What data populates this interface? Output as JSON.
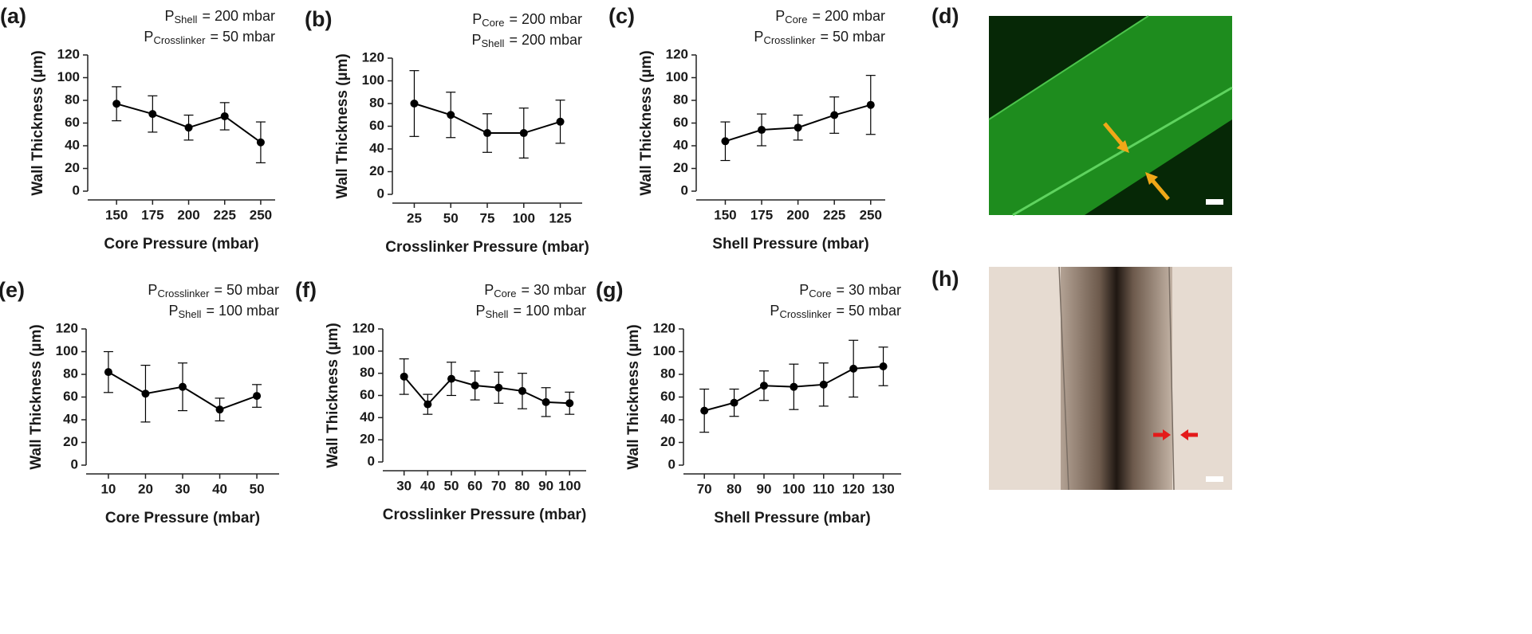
{
  "chart_data": [
    {
      "type": "line",
      "label": "(a)",
      "annotations": [
        {
          "base": "P",
          "sub": "Shell",
          "text": "= 200 mbar"
        },
        {
          "base": "P",
          "sub": "Crosslinker",
          "text": "= 50 mbar"
        }
      ],
      "xlabel": "Core Pressure (mbar)",
      "ylabel": "Wall Thickness (µm)",
      "color": "#000000",
      "x": [
        150,
        175,
        200,
        225,
        250
      ],
      "values": [
        77,
        68,
        56,
        66,
        43
      ],
      "errors": [
        15,
        16,
        11,
        12,
        18
      ],
      "xlim": [
        130,
        260
      ],
      "xticks": [
        150,
        175,
        200,
        225,
        250
      ],
      "ylim": [
        0,
        120
      ],
      "yticks": [
        0,
        20,
        40,
        60,
        80,
        100,
        120
      ]
    },
    {
      "type": "line",
      "label": "(b)",
      "annotations": [
        {
          "base": "P",
          "sub": "Core",
          "text": "= 200 mbar"
        },
        {
          "base": "P",
          "sub": "Shell",
          "text": "= 200 mbar"
        }
      ],
      "xlabel": "Crosslinker Pressure (mbar)",
      "ylabel": "Wall Thickness (µm)",
      "color": "#000000",
      "x": [
        25,
        50,
        75,
        100,
        125
      ],
      "values": [
        80,
        70,
        54,
        54,
        64
      ],
      "errors": [
        29,
        20,
        17,
        22,
        19
      ],
      "xlim": [
        10,
        140
      ],
      "xticks": [
        25,
        50,
        75,
        100,
        125
      ],
      "ylim": [
        0,
        120
      ],
      "yticks": [
        0,
        20,
        40,
        60,
        80,
        100,
        120
      ]
    },
    {
      "type": "line",
      "label": "(c)",
      "annotations": [
        {
          "base": "P",
          "sub": "Core",
          "text": "= 200 mbar"
        },
        {
          "base": "P",
          "sub": "Crosslinker",
          "text": "= 50 mbar"
        }
      ],
      "xlabel": "Shell Pressure (mbar)",
      "ylabel": "Wall Thickness (µm)",
      "color": "#000000",
      "x": [
        150,
        175,
        200,
        225,
        250
      ],
      "values": [
        44,
        54,
        56,
        67,
        76
      ],
      "errors": [
        17,
        14,
        11,
        16,
        26
      ],
      "xlim": [
        130,
        260
      ],
      "xticks": [
        150,
        175,
        200,
        225,
        250
      ],
      "ylim": [
        0,
        120
      ],
      "yticks": [
        0,
        20,
        40,
        60,
        80,
        100,
        120
      ]
    },
    {
      "type": "line",
      "label": "(e)",
      "annotations": [
        {
          "base": "P",
          "sub": "Crosslinker",
          "text": "= 50 mbar"
        },
        {
          "base": "P",
          "sub": "Shell",
          "text": "= 100 mbar"
        }
      ],
      "xlabel": "Core Pressure (mbar)",
      "ylabel": "Wall Thickness (µm)",
      "color": "#000000",
      "x": [
        10,
        20,
        30,
        40,
        50
      ],
      "values": [
        82,
        63,
        69,
        49,
        61
      ],
      "errors": [
        18,
        25,
        21,
        10,
        10
      ],
      "xlim": [
        4,
        56
      ],
      "xticks": [
        10,
        20,
        30,
        40,
        50
      ],
      "ylim": [
        0,
        120
      ],
      "yticks": [
        0,
        20,
        40,
        60,
        80,
        100,
        120
      ]
    },
    {
      "type": "line",
      "label": "(f)",
      "annotations": [
        {
          "base": "P",
          "sub": "Core",
          "text": "= 30 mbar"
        },
        {
          "base": "P",
          "sub": "Shell",
          "text": "= 100 mbar"
        }
      ],
      "xlabel": "Crosslinker Pressure (mbar)",
      "ylabel": "Wall Thickness (µm)",
      "color": "#000000",
      "x": [
        30,
        40,
        50,
        60,
        70,
        80,
        90,
        100
      ],
      "values": [
        77,
        52,
        75,
        69,
        67,
        64,
        54,
        53
      ],
      "errors": [
        16,
        9,
        15,
        13,
        14,
        16,
        13,
        10
      ],
      "xlim": [
        21,
        107
      ],
      "xticks": [
        30,
        40,
        50,
        60,
        70,
        80,
        90,
        100
      ],
      "ylim": [
        0,
        120
      ],
      "yticks": [
        0,
        20,
        40,
        60,
        80,
        100,
        120
      ]
    },
    {
      "type": "line",
      "label": "(g)",
      "annotations": [
        {
          "base": "P",
          "sub": "Core",
          "text": "= 30 mbar"
        },
        {
          "base": "P",
          "sub": "Crosslinker",
          "text": "= 50 mbar"
        }
      ],
      "xlabel": "Shell Pressure (mbar)",
      "ylabel": "Wall Thickness (µm)",
      "color": "#000000",
      "x": [
        70,
        80,
        90,
        100,
        110,
        120,
        130
      ],
      "values": [
        48,
        55,
        70,
        69,
        71,
        85,
        87
      ],
      "errors": [
        19,
        12,
        13,
        20,
        19,
        25,
        17
      ],
      "xlim": [
        63,
        136
      ],
      "xticks": [
        70,
        80,
        90,
        100,
        110,
        120,
        130
      ],
      "ylim": [
        0,
        120
      ],
      "yticks": [
        0,
        20,
        40,
        60,
        80,
        100,
        120
      ]
    }
  ],
  "images": [
    {
      "label": "(d)"
    },
    {
      "label": "(h)"
    }
  ]
}
